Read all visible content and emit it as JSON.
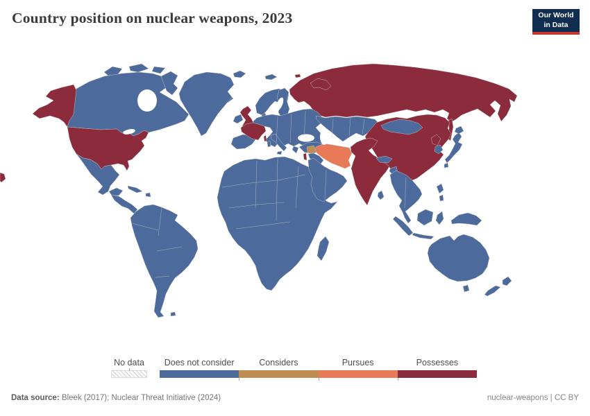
{
  "header": {
    "title": "Country position on nuclear weapons, 2023",
    "logo": {
      "line1": "Our World",
      "line2": "in Data"
    }
  },
  "chart_data": {
    "type": "choropleth",
    "title": "Country position on nuclear weapons, 2023",
    "year": "2023",
    "legend_position": "bottom",
    "legend": [
      {
        "label": "No data",
        "color": "hatch"
      },
      {
        "label": "Does not consider",
        "color": "#4c6a9c"
      },
      {
        "label": "Considers",
        "color": "#bd8d52"
      },
      {
        "label": "Pursues",
        "color": "#e97a58"
      },
      {
        "label": "Possesses",
        "color": "#8c2b3c"
      }
    ],
    "default_position": "Does not consider",
    "country_positions": {
      "United States": "Possesses",
      "Russia": "Possesses",
      "United Kingdom": "Possesses",
      "France": "Possesses",
      "China": "Possesses",
      "India": "Possesses",
      "Pakistan": "Possesses",
      "North Korea": "Possesses",
      "Israel": "Possesses",
      "Iran": "Pursues",
      "Syria": "Considers"
    }
  },
  "footer": {
    "source_label": "Data source:",
    "source_text": " Bleek (2017); Nuclear Threat Initiative (2024)",
    "right_text": "nuclear-weapons | CC BY"
  }
}
